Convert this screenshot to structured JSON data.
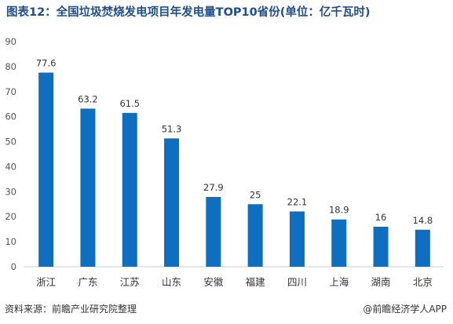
{
  "title": "图表12：全国垃圾焚烧发电项目年发电量TOP10省份(单位：亿千瓦时)",
  "source": "资料来源：前瞻产业研究院整理",
  "brand": "@前瞻经济学人APP",
  "colors": {
    "bar": "#0e6fc1",
    "title": "#1f4e8c"
  },
  "chart_data": {
    "type": "bar",
    "categories": [
      "浙江",
      "广东",
      "江苏",
      "山东",
      "安徽",
      "福建",
      "四川",
      "上海",
      "湖南",
      "北京"
    ],
    "values": [
      77.6,
      63.2,
      61.5,
      51.3,
      27.9,
      25,
      22.1,
      18.9,
      16,
      14.8
    ],
    "value_labels": [
      "77.6",
      "63.2",
      "61.5",
      "51.3",
      "27.9",
      "25",
      "22.1",
      "18.9",
      "16",
      "14.8"
    ],
    "ylim": [
      0,
      90
    ],
    "yticks": [
      0,
      10,
      20,
      30,
      40,
      50,
      60,
      70,
      80,
      90
    ],
    "grid": false
  }
}
